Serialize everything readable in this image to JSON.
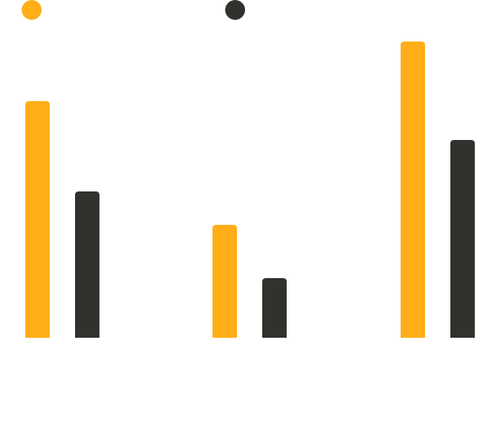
{
  "chart_data": {
    "type": "bar",
    "categories": [
      "",
      "",
      ""
    ],
    "series": [
      {
        "values": [
          262,
          125,
          328
        ],
        "color": "#FFAE17"
      },
      {
        "values": [
          162,
          66,
          219
        ],
        "color": "#33312D"
      }
    ],
    "ylim": [
      0,
      340
    ],
    "legend": "top-left",
    "grid": false,
    "title": "",
    "xlabel": "",
    "ylabel": ""
  }
}
